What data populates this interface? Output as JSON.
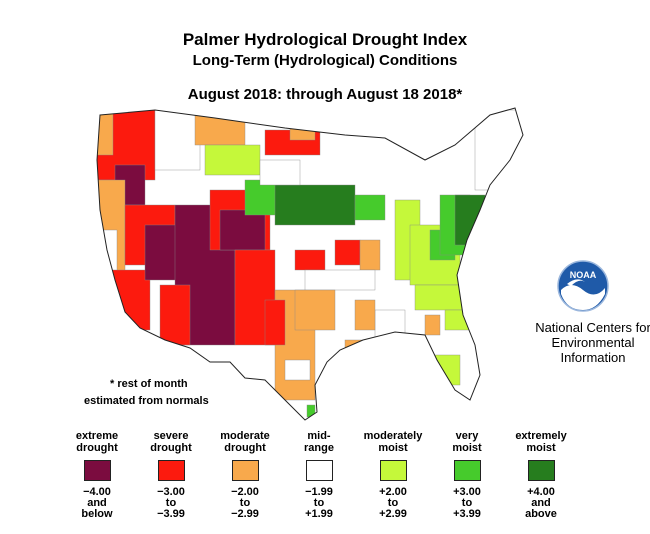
{
  "title": "Palmer Hydrological Drought Index",
  "subtitle": "Long-Term (Hydrological) Conditions",
  "period": "August 2018: through August 18 2018*",
  "note": {
    "line1": "* rest of month",
    "line2": "estimated from normals"
  },
  "agency": {
    "logo_text": "NOAA",
    "line1": "National Centers for",
    "line2": "Environmental",
    "line3": "Information"
  },
  "legend": [
    {
      "label1": "extreme",
      "label2": "drought",
      "color": "#7b0c3f",
      "r1": "−4.00",
      "r2": "and",
      "r3": "below"
    },
    {
      "label1": "severe",
      "label2": "drought",
      "color": "#fc1a0e",
      "r1": "−3.00",
      "r2": "to",
      "r3": "−3.99"
    },
    {
      "label1": "moderate",
      "label2": "drought",
      "color": "#f8a94c",
      "r1": "−2.00",
      "r2": "to",
      "r3": "−2.99"
    },
    {
      "label1": "mid-",
      "label2": "range",
      "color": "#ffffff",
      "r1": "−1.99",
      "r2": "to",
      "r3": "+1.99"
    },
    {
      "label1": "moderately",
      "label2": "moist",
      "color": "#c5f83a",
      "r1": "+2.00",
      "r2": "to",
      "r3": "+2.99"
    },
    {
      "label1": "very",
      "label2": "moist",
      "color": "#46cb2c",
      "r1": "+3.00",
      "r2": "to",
      "r3": "+3.99"
    },
    {
      "label1": "extremely",
      "label2": "moist",
      "color": "#267d1e",
      "r1": "+4.00",
      "r2": "and",
      "r3": "above"
    }
  ],
  "regions": [
    {
      "name": "pacific-northwest",
      "category": "severe drought"
    },
    {
      "name": "great-basin-four-corners",
      "category": "extreme drought"
    },
    {
      "name": "northern-plains",
      "category": "extremely moist"
    },
    {
      "name": "mid-atlantic",
      "category": "extremely moist"
    },
    {
      "name": "southern-plains",
      "category": "moderate drought"
    }
  ]
}
